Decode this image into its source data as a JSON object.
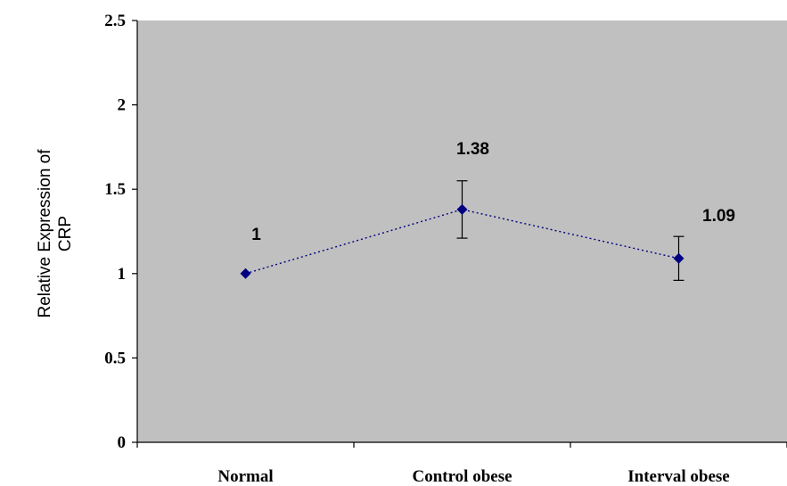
{
  "chart_data": {
    "type": "line",
    "categories": [
      "Normal",
      "Control obese",
      "Interval obese"
    ],
    "series": [
      {
        "values": [
          1,
          1.38,
          1.09
        ],
        "error": [
          null,
          0.17,
          0.13
        ],
        "data_labels": [
          "1",
          "1.38",
          "1.09"
        ],
        "color": "#000080",
        "line_style": "dotted",
        "marker": "diamond"
      }
    ],
    "title": "",
    "xlabel": "",
    "ylabel_lines": [
      "Relative Expression of",
      "CRP"
    ],
    "ylim": [
      0,
      2.5
    ],
    "yticks": [
      0,
      0.5,
      1,
      1.5,
      2,
      2.5
    ],
    "ytick_labels": [
      "0",
      "0.5",
      "1",
      "1.5",
      "2",
      "2.5"
    ],
    "grid": false,
    "legend": "none",
    "plot_background": "#c0c0c0"
  }
}
